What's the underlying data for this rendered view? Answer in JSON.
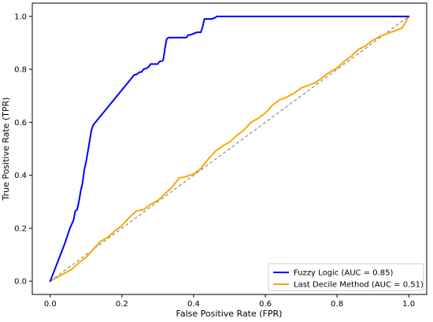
{
  "chart_data": {
    "type": "line",
    "title": "",
    "xlabel": "False Positive Rate (FPR)",
    "ylabel": "True Positive Rate (TPR)",
    "xlim": [
      -0.05,
      1.05
    ],
    "ylim": [
      -0.05,
      1.05
    ],
    "xticks": [
      "0.0",
      "0.2",
      "0.4",
      "0.6",
      "0.8",
      "1.0"
    ],
    "yticks": [
      "0.0",
      "0.2",
      "0.4",
      "0.6",
      "0.8",
      "1.0"
    ],
    "grid": false,
    "legend_position": "bottom-right",
    "diagonal": {
      "from": [
        0,
        0
      ],
      "to": [
        1,
        1
      ],
      "color": "#777777",
      "style": "dashed"
    },
    "series": [
      {
        "name": "Fuzzy Logic (AUC = 0.85)",
        "color": "#0000ff",
        "x": [
          0.0,
          0.02,
          0.04,
          0.05,
          0.055,
          0.065,
          0.07,
          0.075,
          0.08,
          0.085,
          0.09,
          0.095,
          0.1,
          0.105,
          0.11,
          0.115,
          0.12,
          0.235,
          0.24,
          0.25,
          0.255,
          0.26,
          0.27,
          0.275,
          0.28,
          0.29,
          0.3,
          0.305,
          0.31,
          0.315,
          0.318,
          0.32,
          0.325,
          0.33,
          0.37,
          0.38,
          0.385,
          0.39,
          0.41,
          0.42,
          0.425,
          0.43,
          0.45,
          0.46,
          0.465,
          1.0
        ],
        "y": [
          0.0,
          0.07,
          0.14,
          0.18,
          0.2,
          0.23,
          0.265,
          0.27,
          0.3,
          0.34,
          0.37,
          0.42,
          0.45,
          0.49,
          0.53,
          0.57,
          0.59,
          0.78,
          0.78,
          0.79,
          0.79,
          0.8,
          0.805,
          0.81,
          0.82,
          0.82,
          0.82,
          0.83,
          0.83,
          0.835,
          0.86,
          0.88,
          0.915,
          0.92,
          0.92,
          0.92,
          0.93,
          0.93,
          0.94,
          0.94,
          0.96,
          0.99,
          0.99,
          0.995,
          1.0,
          1.0
        ]
      },
      {
        "name": "Last Decile Method (AUC = 0.51)",
        "color": "#ffa500",
        "x": [
          0.0,
          0.02,
          0.04,
          0.06,
          0.08,
          0.1,
          0.12,
          0.14,
          0.16,
          0.18,
          0.2,
          0.22,
          0.24,
          0.26,
          0.28,
          0.3,
          0.32,
          0.34,
          0.36,
          0.38,
          0.4,
          0.42,
          0.44,
          0.46,
          0.48,
          0.5,
          0.52,
          0.54,
          0.56,
          0.58,
          0.6,
          0.62,
          0.64,
          0.66,
          0.68,
          0.7,
          0.72,
          0.74,
          0.76,
          0.78,
          0.8,
          0.82,
          0.84,
          0.86,
          0.88,
          0.9,
          0.92,
          0.94,
          0.96,
          0.98,
          0.99,
          1.0
        ],
        "y": [
          0.0,
          0.015,
          0.03,
          0.045,
          0.07,
          0.09,
          0.12,
          0.15,
          0.165,
          0.19,
          0.21,
          0.24,
          0.265,
          0.27,
          0.29,
          0.305,
          0.33,
          0.355,
          0.39,
          0.395,
          0.405,
          0.425,
          0.46,
          0.49,
          0.51,
          0.525,
          0.55,
          0.57,
          0.6,
          0.615,
          0.635,
          0.665,
          0.685,
          0.695,
          0.71,
          0.73,
          0.74,
          0.75,
          0.77,
          0.79,
          0.805,
          0.83,
          0.85,
          0.875,
          0.89,
          0.91,
          0.925,
          0.935,
          0.945,
          0.955,
          0.975,
          1.0
        ]
      }
    ]
  }
}
